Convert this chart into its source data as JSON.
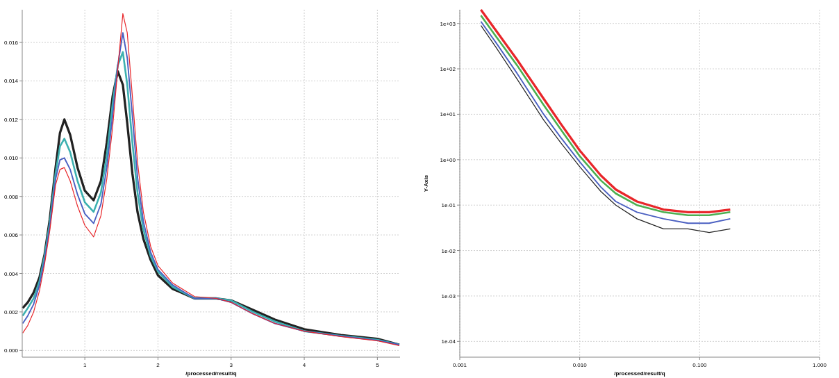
{
  "chart_data": [
    {
      "type": "line",
      "xlabel": "/processed/result/q",
      "x": [
        0.15,
        0.22,
        0.3,
        0.38,
        0.45,
        0.52,
        0.6,
        0.66,
        0.72,
        0.8,
        0.9,
        1.0,
        1.12,
        1.22,
        1.3,
        1.38,
        1.45,
        1.52,
        1.58,
        1.65,
        1.72,
        1.8,
        1.9,
        2.0,
        2.2,
        2.5,
        2.8,
        3.0,
        3.3,
        3.6,
        4.0,
        4.5,
        5.0,
        5.3
      ],
      "series": [
        {
          "color": "#222222",
          "values": [
            0.0022,
            0.0025,
            0.003,
            0.0038,
            0.005,
            0.0068,
            0.0095,
            0.0113,
            0.012,
            0.0112,
            0.0095,
            0.0083,
            0.0078,
            0.0088,
            0.0108,
            0.0132,
            0.0145,
            0.0138,
            0.0118,
            0.0092,
            0.0072,
            0.0058,
            0.0047,
            0.0039,
            0.0032,
            0.0027,
            0.0027,
            0.0026,
            0.0021,
            0.0016,
            0.0011,
            0.0008,
            0.0006,
            0.0003
          ]
        },
        {
          "color": "#3cb0b0",
          "values": [
            0.0018,
            0.0022,
            0.0027,
            0.0036,
            0.0049,
            0.0066,
            0.0092,
            0.0106,
            0.011,
            0.0103,
            0.0088,
            0.0077,
            0.0072,
            0.0082,
            0.0101,
            0.0128,
            0.0148,
            0.0155,
            0.0138,
            0.0108,
            0.0082,
            0.0063,
            0.0049,
            0.0041,
            0.0033,
            0.0027,
            0.0027,
            0.0026,
            0.002,
            0.0015,
            0.001,
            0.00076,
            0.00055,
            0.0003
          ]
        },
        {
          "color": "#4a5fc1",
          "values": [
            0.0014,
            0.0018,
            0.0024,
            0.0034,
            0.0047,
            0.0064,
            0.0089,
            0.0099,
            0.01,
            0.0094,
            0.0081,
            0.0071,
            0.0066,
            0.0076,
            0.0095,
            0.0122,
            0.0148,
            0.0165,
            0.0152,
            0.0122,
            0.009,
            0.0067,
            0.0051,
            0.0042,
            0.0034,
            0.0027,
            0.0027,
            0.0025,
            0.0019,
            0.0014,
            0.001,
            0.00074,
            0.00052,
            0.0003
          ]
        },
        {
          "color": "#e8262a",
          "values": [
            0.0009,
            0.0013,
            0.002,
            0.0031,
            0.0045,
            0.0062,
            0.0086,
            0.0094,
            0.0095,
            0.0088,
            0.0075,
            0.0065,
            0.0059,
            0.007,
            0.0089,
            0.0116,
            0.0146,
            0.0175,
            0.0165,
            0.0132,
            0.0098,
            0.0072,
            0.0054,
            0.0044,
            0.0035,
            0.0028,
            0.0027,
            0.0025,
            0.0019,
            0.0014,
            0.001,
            0.00072,
            0.0005,
            0.00025
          ]
        }
      ],
      "xlim": [
        0.144,
        5.31
      ],
      "ylim": [
        -0.00035,
        0.0177
      ],
      "xticks": [
        1,
        2,
        3,
        4,
        5
      ],
      "yticks": [
        {
          "value": 0,
          "label": "0.000"
        },
        {
          "value": 0.002,
          "label": "0.002"
        },
        {
          "value": 0.004,
          "label": "0.004"
        },
        {
          "value": 0.006,
          "label": "0.006"
        },
        {
          "value": 0.008,
          "label": "0.008"
        },
        {
          "value": 0.01,
          "label": "0.010"
        },
        {
          "value": 0.012,
          "label": "0.012"
        },
        {
          "value": 0.014,
          "label": "0.014"
        },
        {
          "value": 0.016,
          "label": "0.016"
        }
      ],
      "grid": true
    },
    {
      "type": "line",
      "xlabel": "/processed/result/q",
      "ylabel": "Y-Axis",
      "log": "xy",
      "x": [
        0.0015,
        0.002,
        0.003,
        0.005,
        0.007,
        0.01,
        0.015,
        0.02,
        0.03,
        0.05,
        0.08,
        0.12,
        0.18
      ],
      "series": [
        {
          "color": "#e8262a",
          "values": [
            2000,
            700,
            160,
            22,
            6,
            1.6,
            0.45,
            0.22,
            0.12,
            0.08,
            0.07,
            0.07,
            0.08
          ]
        },
        {
          "color": "#4caf50",
          "values": [
            1500,
            520,
            120,
            16,
            4.5,
            1.2,
            0.35,
            0.18,
            0.1,
            0.07,
            0.06,
            0.06,
            0.07
          ]
        },
        {
          "color": "#4a5fc1",
          "values": [
            1100,
            380,
            80,
            10,
            3,
            0.9,
            0.25,
            0.12,
            0.07,
            0.05,
            0.04,
            0.04,
            0.05
          ]
        },
        {
          "color": "#222222",
          "values": [
            900,
            300,
            60,
            7.5,
            2.3,
            0.7,
            0.2,
            0.1,
            0.05,
            0.03,
            0.03,
            0.025,
            0.03
          ]
        }
      ],
      "xlim": [
        0.001,
        1
      ],
      "ylim": [
        4.5e-05,
        2000
      ],
      "xticks": [
        {
          "value": 0.001,
          "label": "0.001"
        },
        {
          "value": 0.01,
          "label": "0.010"
        },
        {
          "value": 0.1,
          "label": "0.100"
        },
        {
          "value": 1,
          "label": "1.000"
        }
      ],
      "yticks": [
        {
          "value": 0.0001,
          "label": "1e-04"
        },
        {
          "value": 0.001,
          "label": "1e-03"
        },
        {
          "value": 0.01,
          "label": "1e-02"
        },
        {
          "value": 0.1,
          "label": "1e-01"
        },
        {
          "value": 1,
          "label": "1e+00"
        },
        {
          "value": 10,
          "label": "1e+01"
        },
        {
          "value": 100,
          "label": "1e+02"
        },
        {
          "value": 1000,
          "label": "1e+03"
        }
      ],
      "grid": true
    }
  ]
}
